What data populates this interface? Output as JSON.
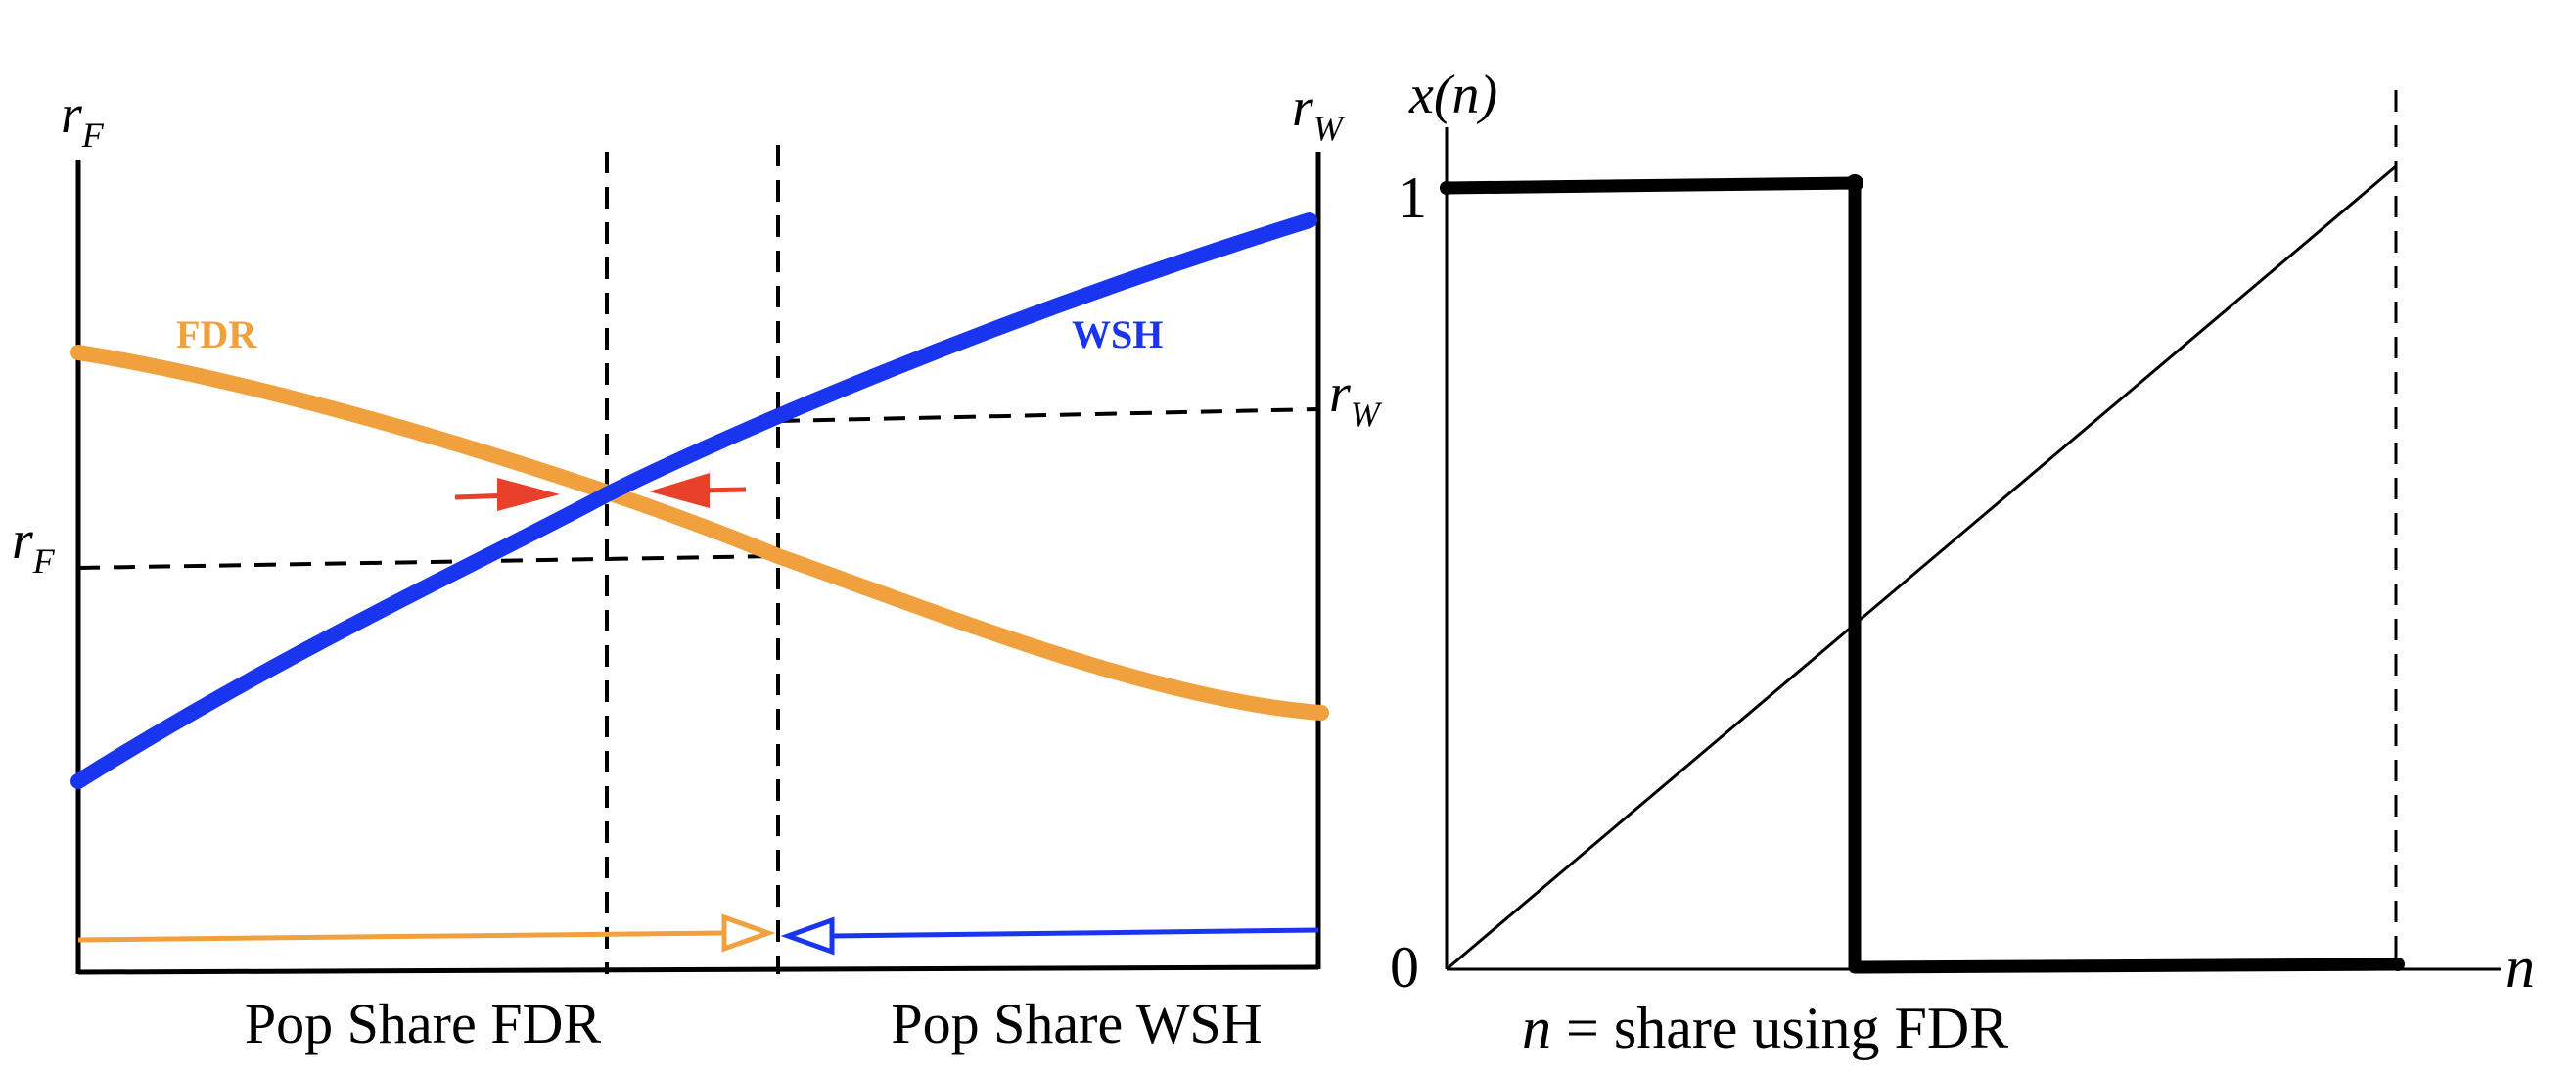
{
  "left_panel": {
    "left_axis": {
      "main": "r",
      "sub": "F"
    },
    "right_axis": {
      "main": "r",
      "sub": "W"
    },
    "curves": {
      "fdr": {
        "label": "FDR",
        "color": "#f0a03c"
      },
      "wsh": {
        "label": "WSH",
        "color": "#1a35f0"
      }
    },
    "markers": {
      "rw": {
        "main": "r",
        "sub": "W"
      },
      "rf": {
        "main": "r",
        "sub": "F"
      }
    },
    "bottom_labels": {
      "left": "Pop Share FDR",
      "right": "Pop Share WSH"
    },
    "arrow_color": "#e8402a"
  },
  "right_panel": {
    "y_axis_label": "x(n)",
    "y_tick_top": "1",
    "y_tick_bottom": "0",
    "x_axis_label": "n",
    "x_caption_var": "n",
    "x_caption_text": " = share using FDR"
  }
}
